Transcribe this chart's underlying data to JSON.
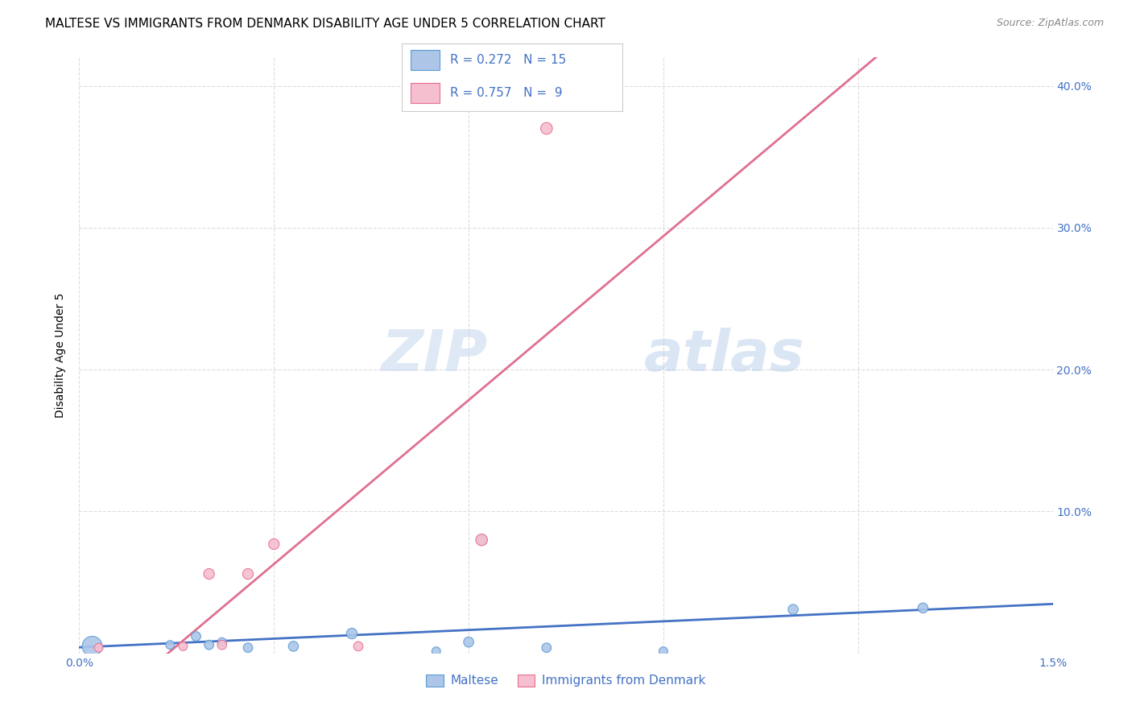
{
  "title": "MALTESE VS IMMIGRANTS FROM DENMARK DISABILITY AGE UNDER 5 CORRELATION CHART",
  "source": "Source: ZipAtlas.com",
  "ylabel_label": "Disability Age Under 5",
  "x_min": 0.0,
  "x_max": 0.015,
  "y_min": 0.0,
  "y_max": 0.42,
  "x_ticks": [
    0.0,
    0.003,
    0.006,
    0.009,
    0.012,
    0.015
  ],
  "x_tick_labels": [
    "0.0%",
    "",
    "",
    "",
    "",
    "1.5%"
  ],
  "y_ticks": [
    0.0,
    0.1,
    0.2,
    0.3,
    0.4
  ],
  "y_tick_labels": [
    "",
    "10.0%",
    "20.0%",
    "30.0%",
    "40.0%"
  ],
  "maltese_x": [
    0.0002,
    0.0014,
    0.0018,
    0.002,
    0.0022,
    0.0026,
    0.0033,
    0.0042,
    0.0055,
    0.006,
    0.0062,
    0.0072,
    0.009,
    0.011,
    0.013
  ],
  "maltese_y": [
    0.005,
    0.006,
    0.012,
    0.006,
    0.008,
    0.004,
    0.005,
    0.014,
    0.0015,
    0.008,
    0.08,
    0.004,
    0.0015,
    0.031,
    0.032
  ],
  "maltese_sizes": [
    320,
    60,
    70,
    70,
    60,
    70,
    80,
    90,
    60,
    80,
    80,
    70,
    60,
    80,
    80
  ],
  "denmark_x": [
    0.0003,
    0.0016,
    0.002,
    0.0022,
    0.0026,
    0.003,
    0.0043,
    0.0062,
    0.0072
  ],
  "denmark_y": [
    0.004,
    0.005,
    0.056,
    0.006,
    0.056,
    0.077,
    0.005,
    0.08,
    0.37
  ],
  "denmark_sizes": [
    60,
    60,
    90,
    70,
    90,
    90,
    70,
    110,
    110
  ],
  "maltese_color": "#adc6e8",
  "maltese_edge_color": "#5b9bd5",
  "denmark_color": "#f5bfcf",
  "denmark_edge_color": "#e87090",
  "maltese_line_color": "#4472c4",
  "denmark_line_color": "#e07090",
  "R_maltese": 0.272,
  "N_maltese": 15,
  "R_denmark": 0.757,
  "N_denmark": 9,
  "legend_label_maltese": "Maltese",
  "legend_label_denmark": "Immigrants from Denmark",
  "watermark_zip": "ZIP",
  "watermark_atlas": "atlas",
  "label_color": "#4472c4",
  "title_fontsize": 11,
  "axis_label_fontsize": 10,
  "tick_fontsize": 10
}
